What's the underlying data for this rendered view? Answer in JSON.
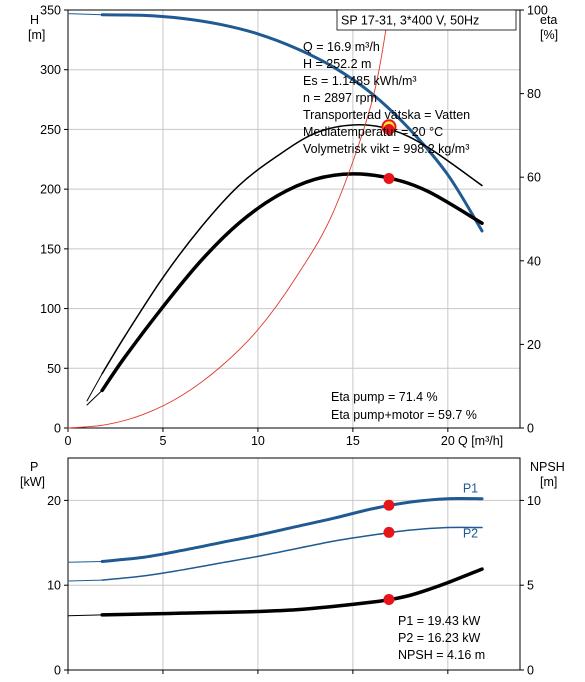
{
  "colors": {
    "pump_blue": "#1f5a92",
    "eta_red": "#e03a2a",
    "point_red": "#e8141c",
    "point_yellow": "#ffee33",
    "grid": "#c8c8c8"
  },
  "chart_data": [
    {
      "type": "line",
      "id": "qh-eta",
      "title": "SP 17-31, 3*400 V, 50Hz",
      "xlabel": "Q [m³/h]",
      "ylabel_left": [
        "H",
        "[m]"
      ],
      "ylabel_right": [
        "eta",
        "[%]"
      ],
      "xlim": [
        0,
        23.8
      ],
      "ylim_left": [
        0,
        350
      ],
      "ylim_right": [
        0,
        100
      ],
      "xticks": [
        0,
        5,
        10,
        15,
        20
      ],
      "yticks_left": [
        0,
        50,
        100,
        150,
        200,
        250,
        300,
        350
      ],
      "yticks_right": [
        0,
        20,
        40,
        60,
        80,
        100
      ],
      "grid": true,
      "info_lines": [
        "Q = 16.9 m³/h",
        "H = 252.2 m",
        "Es = 1.1485 kWh/m³",
        "n = 2897 rpm",
        "Transporterad vätska = Vatten",
        "Mediatemperatur = 20 °C",
        "Volymetrisk vikt = 998.2 kg/m³"
      ],
      "annotations": [
        "Eta pump = 71.4 %",
        "Eta pump+motor = 59.7 %"
      ],
      "series": [
        {
          "axis": "left",
          "color": "#1f5a92",
          "width": 3,
          "x": [
            1.8,
            4,
            6,
            8,
            10,
            12,
            14,
            16,
            18,
            20,
            21.8
          ],
          "values": [
            346,
            345.5,
            343,
            338,
            330,
            318,
            302,
            280,
            250,
            212,
            165
          ]
        },
        {
          "axis": "left",
          "color": "#1f5a92",
          "width": 1,
          "x": [
            0,
            1.8
          ],
          "values": [
            347,
            346
          ]
        },
        {
          "axis": "right",
          "color": "#000000",
          "width": 1.5,
          "x": [
            1.8,
            3,
            5,
            7,
            9,
            11,
            13,
            15,
            17,
            19,
            21.8
          ],
          "values": [
            13,
            22,
            36,
            48,
            58,
            65,
            70.5,
            72.5,
            71.4,
            67,
            58
          ]
        },
        {
          "axis": "right",
          "color": "#000000",
          "width": 1,
          "x": [
            1,
            1.8
          ],
          "values": [
            6.5,
            13
          ]
        },
        {
          "axis": "right",
          "color": "#000000",
          "width": 3.5,
          "x": [
            1.8,
            3,
            5,
            7,
            9,
            11,
            13,
            15,
            17,
            19,
            21.8
          ],
          "values": [
            9,
            17,
            29,
            40,
            49,
            55.5,
            59.5,
            60.8,
            59.7,
            56.5,
            49
          ]
        },
        {
          "axis": "right",
          "color": "#000000",
          "width": 1,
          "x": [
            1,
            1.8
          ],
          "values": [
            5.5,
            9
          ]
        },
        {
          "axis": "right",
          "color": "#e03a2a",
          "width": 0.9,
          "x": [
            0,
            2,
            4,
            6,
            8,
            10,
            12,
            14,
            16,
            16.9
          ],
          "values": [
            0,
            0.8,
            3.3,
            7.8,
            14.5,
            23.5,
            36,
            52,
            78,
            100
          ]
        }
      ],
      "points": [
        {
          "axis": "left",
          "x": 16.9,
          "y": 252.2,
          "fill": "#ffee33"
        },
        {
          "axis": "right",
          "x": 16.9,
          "y": 71.4,
          "fill": "#e8141c"
        },
        {
          "axis": "right",
          "x": 16.9,
          "y": 59.7,
          "fill": "#e8141c"
        }
      ]
    },
    {
      "type": "line",
      "id": "power-npsh",
      "xlabel": "",
      "ylabel_left": [
        "P",
        "[kW]"
      ],
      "ylabel_right": [
        "NPSH",
        "[m]"
      ],
      "xlim": [
        0,
        23.8
      ],
      "ylim_left": [
        0,
        25
      ],
      "ylim_right": [
        0,
        12.5
      ],
      "yticks_left": [
        0,
        10,
        20
      ],
      "yticks_right": [
        0,
        5,
        10
      ],
      "grid": true,
      "annotations": [
        "P1 = 19.43 kW",
        "P2 = 16.23 kW",
        "NPSH = 4.16 m"
      ],
      "series": [
        {
          "name": "P1",
          "axis": "left",
          "color": "#1f5a92",
          "width": 3,
          "x": [
            1.8,
            4,
            6,
            8,
            10,
            12,
            14,
            16,
            18,
            20,
            21.8
          ],
          "values": [
            12.8,
            13.3,
            14.1,
            15.0,
            15.9,
            16.9,
            17.9,
            19.0,
            19.8,
            20.2,
            20.2
          ],
          "label_at": [
            21,
            21.4
          ]
        },
        {
          "axis": "left",
          "color": "#1f5a92",
          "width": 1,
          "x": [
            0,
            1.8
          ],
          "values": [
            12.7,
            12.8
          ]
        },
        {
          "name": "P2",
          "axis": "left",
          "color": "#1f5a92",
          "width": 1.5,
          "x": [
            1.8,
            4,
            6,
            8,
            10,
            12,
            14,
            16,
            18,
            20,
            21.8
          ],
          "values": [
            10.6,
            11.1,
            11.8,
            12.6,
            13.4,
            14.3,
            15.2,
            15.9,
            16.5,
            16.8,
            16.8
          ],
          "label_at": [
            21,
            16.1
          ]
        },
        {
          "axis": "left",
          "color": "#1f5a92",
          "width": 1,
          "x": [
            0,
            1.8
          ],
          "values": [
            10.5,
            10.6
          ]
        },
        {
          "axis": "right",
          "color": "#000000",
          "width": 3.5,
          "x": [
            1.8,
            4,
            6,
            8,
            10,
            12,
            14,
            16,
            17,
            18,
            19,
            20,
            21.8
          ],
          "values": [
            3.25,
            3.3,
            3.35,
            3.4,
            3.45,
            3.55,
            3.75,
            4.0,
            4.16,
            4.4,
            4.75,
            5.15,
            5.95
          ]
        },
        {
          "axis": "right",
          "color": "#000000",
          "width": 1,
          "x": [
            0,
            1.8
          ],
          "values": [
            3.2,
            3.25
          ]
        }
      ],
      "points": [
        {
          "axis": "left",
          "x": 16.9,
          "y": 19.43,
          "fill": "#e8141c"
        },
        {
          "axis": "left",
          "x": 16.9,
          "y": 16.23,
          "fill": "#e8141c"
        },
        {
          "axis": "right",
          "x": 16.9,
          "y": 4.16,
          "fill": "#e8141c"
        }
      ]
    }
  ]
}
